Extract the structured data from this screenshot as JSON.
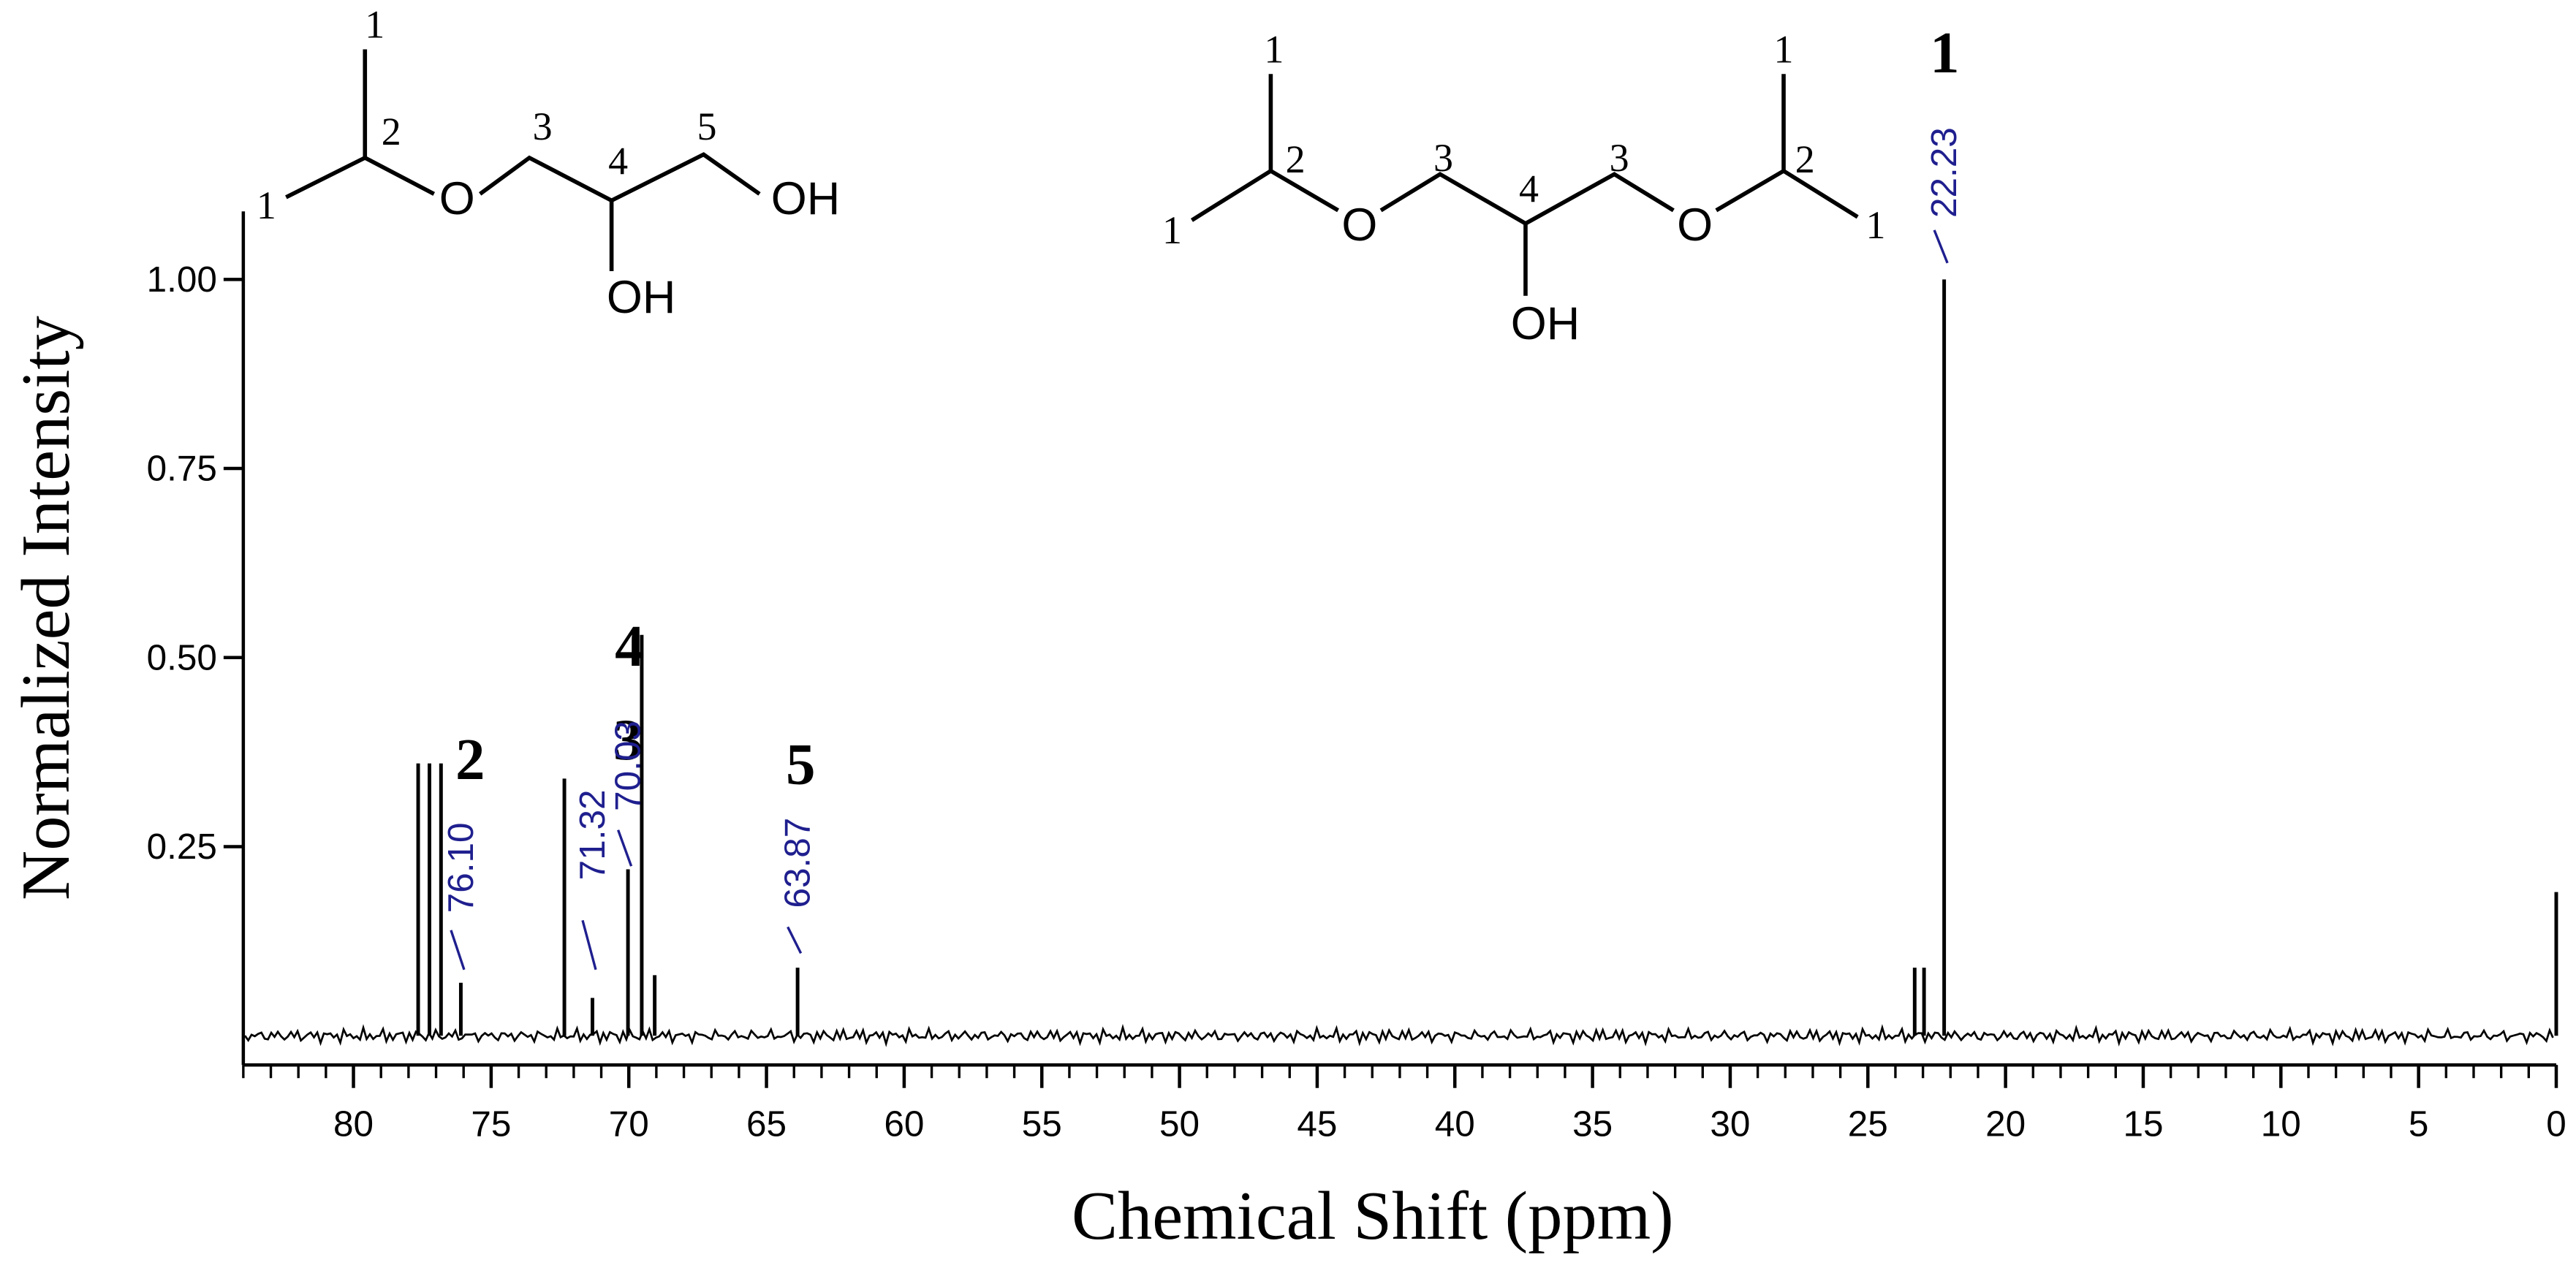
{
  "chart_data": {
    "type": "spectrum",
    "x_label": "Chemical Shift (ppm)",
    "y_label": "Normalized Intensity",
    "x": [
      77.65,
      77.24,
      76.82,
      76.1,
      72.34,
      71.32,
      70.03,
      69.53,
      69.06,
      63.87,
      23.3,
      22.96,
      22.23,
      0
    ],
    "values": [
      0.36,
      0.36,
      0.36,
      0.07,
      0.34,
      0.05,
      0.22,
      0.53,
      0.08,
      0.09,
      0.09,
      0.09,
      1.0,
      0.19
    ],
    "color": "#000000",
    "xlim": [
      84,
      0
    ],
    "xticks": [
      80,
      75,
      70,
      65,
      60,
      55,
      50,
      45,
      40,
      35,
      30,
      25,
      20,
      15,
      10,
      5,
      0
    ],
    "ylim": [
      -0.03,
      1.09
    ],
    "yticks": [
      {
        "value": 0.25,
        "label": "0.25"
      },
      {
        "value": 0.5,
        "label": "0.50"
      },
      {
        "value": 0.75,
        "label": "0.75"
      },
      {
        "value": 1,
        "label": "1.00"
      }
    ],
    "peak_labels": [
      {
        "value": 76.1,
        "label": "76.10"
      },
      {
        "value": 71.32,
        "label": "71.32"
      },
      {
        "value": 70.03,
        "label": "70.03"
      },
      {
        "value": 63.87,
        "label": "63.87"
      },
      {
        "value": 22.23,
        "label": "22.23"
      }
    ],
    "peak_label_color": "#1f1f8f",
    "assignments": [
      "2",
      "3",
      "4",
      "5",
      "1"
    ]
  },
  "structures": [
    {
      "atoms": [
        "1",
        "2",
        "1",
        "O",
        "3",
        "4",
        "OH",
        "5",
        "OH"
      ]
    },
    {
      "atoms": [
        "1",
        "2",
        "1",
        "O",
        "3",
        "4",
        "OH",
        "3",
        "O",
        "2",
        "1",
        "1"
      ]
    }
  ]
}
